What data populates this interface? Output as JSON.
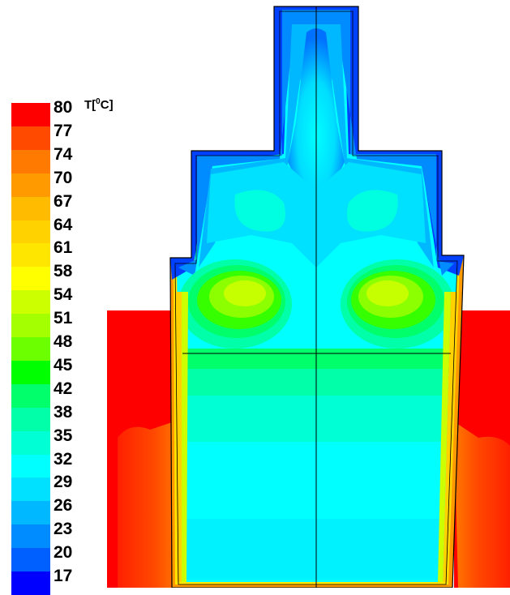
{
  "legend": {
    "unit_prefix": "T[",
    "unit_sup": "0",
    "unit_suffix": "C]",
    "ticks": [
      "80",
      "77",
      "74",
      "70",
      "67",
      "64",
      "61",
      "58",
      "54",
      "51",
      "48",
      "45",
      "42",
      "38",
      "35",
      "32",
      "29",
      "26",
      "23",
      "20",
      "17"
    ],
    "colors": [
      "#ff0000",
      "#ff4a00",
      "#ff7a00",
      "#ff9b00",
      "#ffbb00",
      "#ffd200",
      "#ffe600",
      "#ffff00",
      "#ccff00",
      "#a4ff00",
      "#6bff00",
      "#00ff00",
      "#00ff6a",
      "#00ffa8",
      "#00ffd5",
      "#00ffff",
      "#00e0ff",
      "#00b8ff",
      "#008cff",
      "#0060ff",
      "#0000ff"
    ]
  }
}
